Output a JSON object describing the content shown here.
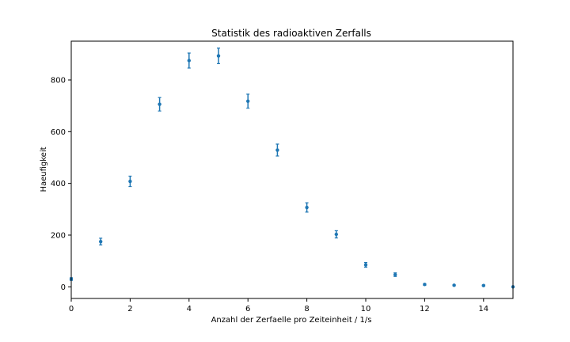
{
  "chart_data": {
    "type": "scatter",
    "title": "Statistik des radioaktiven Zerfalls",
    "xlabel": "Anzahl der Zerfaelle pro Zeiteinheit / 1/s",
    "ylabel": "Haeufigkeit",
    "xlim": [
      0,
      15
    ],
    "ylim": [
      -45,
      950
    ],
    "xticks": [
      0,
      2,
      4,
      6,
      8,
      10,
      12,
      14
    ],
    "yticks": [
      0,
      200,
      400,
      600,
      800
    ],
    "grid": false,
    "marker_color": "#1f77b4",
    "points": [
      {
        "x": 0,
        "y": 30,
        "err": 5
      },
      {
        "x": 1,
        "y": 175,
        "err": 13
      },
      {
        "x": 2,
        "y": 408,
        "err": 20
      },
      {
        "x": 3,
        "y": 706,
        "err": 26
      },
      {
        "x": 4,
        "y": 875,
        "err": 29
      },
      {
        "x": 5,
        "y": 893,
        "err": 30
      },
      {
        "x": 6,
        "y": 718,
        "err": 27
      },
      {
        "x": 7,
        "y": 529,
        "err": 23
      },
      {
        "x": 8,
        "y": 307,
        "err": 18
      },
      {
        "x": 9,
        "y": 203,
        "err": 14
      },
      {
        "x": 10,
        "y": 85,
        "err": 9
      },
      {
        "x": 11,
        "y": 47,
        "err": 7
      },
      {
        "x": 12,
        "y": 9,
        "err": 3
      },
      {
        "x": 13,
        "y": 6,
        "err": 2
      },
      {
        "x": 14,
        "y": 5,
        "err": 2
      },
      {
        "x": 15,
        "y": 0,
        "err": 1
      }
    ]
  }
}
